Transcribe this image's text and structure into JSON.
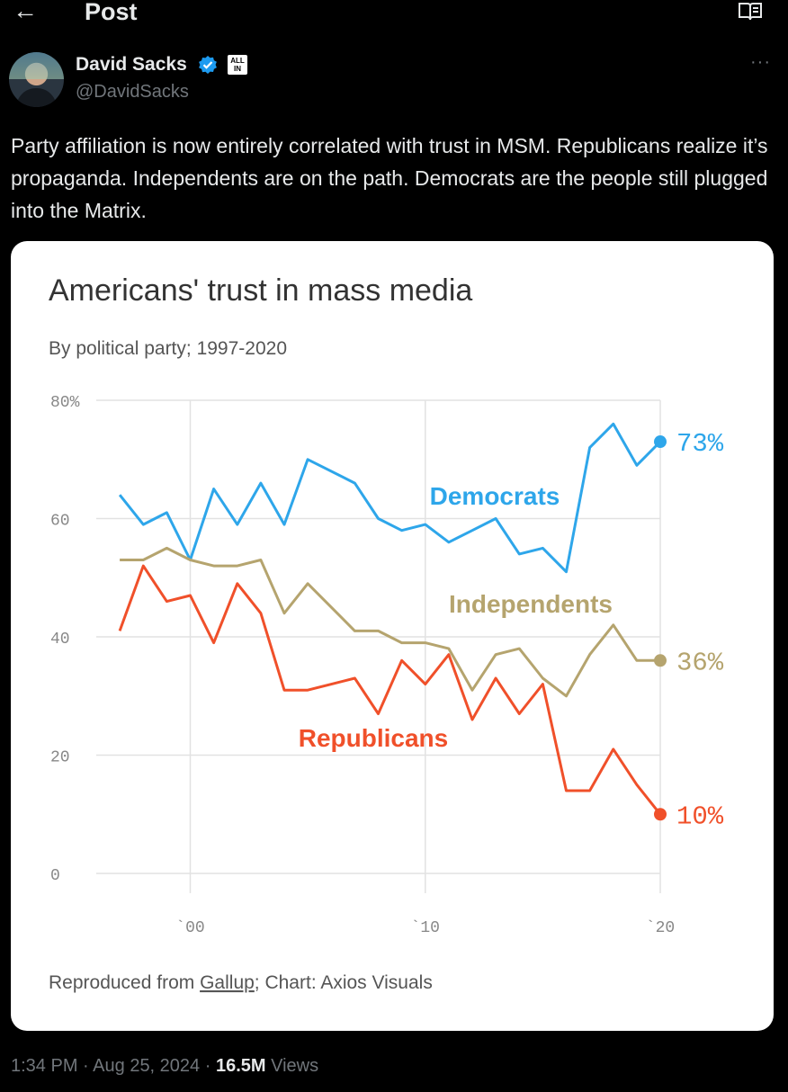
{
  "header": {
    "back_icon": "arrow-left-icon",
    "title": "Post",
    "reader_icon": "open-book-icon"
  },
  "author": {
    "name": "David Sacks",
    "handle": "@DavidSacks",
    "affiliation_badge": "ALL IN",
    "verified_color": "#1d9bf0"
  },
  "post": {
    "text": "Party affiliation is now entirely correlated with trust in MSM. Republicans realize it’s propaganda. Independents are on the path. Democrats are the people still plugged into the Matrix."
  },
  "meta": {
    "time": "1:34 PM",
    "sep": "·",
    "date": "Aug 25, 2024",
    "views_count": "16.5M",
    "views_label": "Views"
  },
  "chart_data": {
    "type": "line",
    "title": "Americans' trust in mass media",
    "subtitle": "By political party; 1997-2020",
    "ylim": [
      0,
      80
    ],
    "y_ticks": [
      0,
      20,
      40,
      60,
      80
    ],
    "y_tick_labels": [
      "0",
      "20",
      "40",
      "60",
      "80%"
    ],
    "x_ticks": [
      2000,
      2010,
      2020
    ],
    "x_tick_labels": [
      "`00",
      "`10",
      "`20"
    ],
    "xlim": [
      1996,
      2020
    ],
    "grid": true,
    "x": [
      1997,
      1998,
      1999,
      2000,
      2001,
      2002,
      2003,
      2004,
      2005,
      2007,
      2008,
      2009,
      2010,
      2011,
      2012,
      2013,
      2014,
      2015,
      2016,
      2017,
      2018,
      2019,
      2020
    ],
    "series": [
      {
        "name": "Democrats",
        "color": "#2ea6ea",
        "end_label": "73%",
        "values": [
          64,
          59,
          61,
          53,
          65,
          59,
          66,
          59,
          70,
          66,
          60,
          58,
          59,
          56,
          58,
          60,
          54,
          55,
          51,
          72,
          76,
          69,
          73
        ]
      },
      {
        "name": "Independents",
        "color": "#b5a46e",
        "end_label": "36%",
        "values": [
          53,
          53,
          55,
          53,
          52,
          52,
          53,
          44,
          49,
          41,
          41,
          39,
          39,
          38,
          31,
          37,
          38,
          33,
          30,
          37,
          42,
          36,
          36
        ]
      },
      {
        "name": "Republicans",
        "color": "#f0502a",
        "end_label": "10%",
        "values": [
          41,
          52,
          46,
          47,
          39,
          49,
          44,
          31,
          31,
          33,
          27,
          36,
          32,
          37,
          26,
          33,
          27,
          32,
          14,
          14,
          21,
          15,
          10
        ]
      }
    ],
    "source_prefix": "Reproduced from ",
    "source_link": "Gallup",
    "source_suffix": "; Chart: Axios Visuals"
  }
}
